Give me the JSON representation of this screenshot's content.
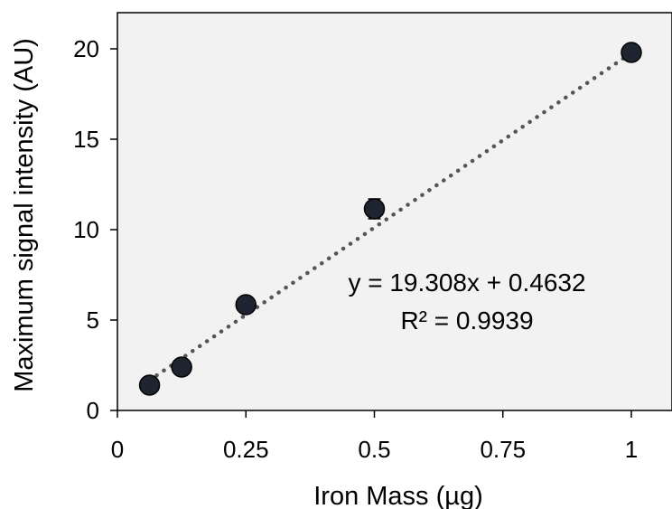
{
  "chart_data": {
    "type": "scatter",
    "xlabel": "Iron Mass (µg)",
    "ylabel": "Maximum signal intensity (AU)",
    "xlim": [
      0,
      1.05
    ],
    "ylim": [
      0,
      22
    ],
    "x_ticks": [
      0,
      0.25,
      0.5,
      0.75,
      1
    ],
    "x_tick_labels": [
      "0",
      "0.25",
      "0.5",
      "0.75",
      "1"
    ],
    "y_ticks": [
      0,
      5,
      10,
      15,
      20
    ],
    "y_tick_labels": [
      "0",
      "5",
      "10",
      "15",
      "20"
    ],
    "grid": false,
    "plot_background": "#f2f2f2",
    "series": [
      {
        "x": [
          0.0625,
          0.125,
          0.25,
          0.5,
          1.0
        ],
        "y": [
          1.4,
          2.4,
          5.85,
          11.15,
          19.8
        ],
        "y_error": [
          0.2,
          0.2,
          0.25,
          0.55,
          0.3
        ],
        "marker_color": "#1e2430",
        "marker_edge_color": "#000000"
      }
    ],
    "trendline": {
      "slope": 19.308,
      "intercept": 0.4632,
      "x_range": [
        0.0625,
        1.0
      ],
      "style": "dotted",
      "color": "#555555"
    },
    "annotations": [
      "y = 19.308x + 0.4632",
      "R² = 0.9939"
    ]
  }
}
